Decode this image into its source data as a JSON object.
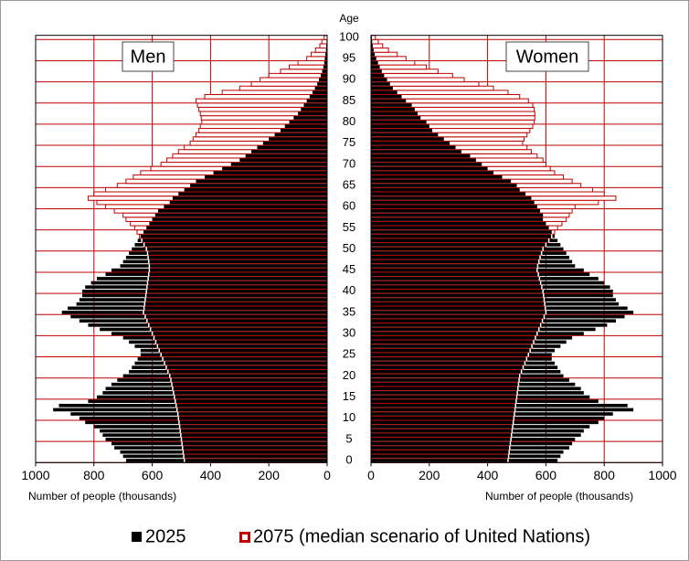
{
  "chart_data": {
    "type": "pyramid",
    "age_label": "Age",
    "left_label": "Men",
    "right_label": "Women",
    "xlabel": "Number  of people (thousands)",
    "xlim": [
      0,
      1000
    ],
    "xticks": [
      0,
      200,
      400,
      600,
      800,
      1000
    ],
    "ylim": [
      -0.5,
      100.5
    ],
    "yticks": [
      0,
      5,
      10,
      15,
      20,
      25,
      30,
      35,
      40,
      45,
      50,
      55,
      60,
      65,
      70,
      75,
      80,
      85,
      90,
      95,
      100
    ],
    "grid": true,
    "grid_color": "#c00000",
    "categories": [
      0,
      1,
      2,
      3,
      4,
      5,
      6,
      7,
      8,
      9,
      10,
      11,
      12,
      13,
      14,
      15,
      16,
      17,
      18,
      19,
      20,
      21,
      22,
      23,
      24,
      25,
      26,
      27,
      28,
      29,
      30,
      31,
      32,
      33,
      34,
      35,
      36,
      37,
      38,
      39,
      40,
      41,
      42,
      43,
      44,
      45,
      46,
      47,
      48,
      49,
      50,
      51,
      52,
      53,
      54,
      55,
      56,
      57,
      58,
      59,
      60,
      61,
      62,
      63,
      64,
      65,
      66,
      67,
      68,
      69,
      70,
      71,
      72,
      73,
      74,
      75,
      76,
      77,
      78,
      79,
      80,
      81,
      82,
      83,
      84,
      85,
      86,
      87,
      88,
      89,
      90,
      91,
      92,
      93,
      94,
      95,
      96,
      97,
      98,
      99,
      100
    ],
    "series": [
      {
        "name": "2025",
        "color": "#000000",
        "style": "filled",
        "men": [
          690,
          700,
          710,
          730,
          740,
          760,
          770,
          780,
          800,
          830,
          850,
          880,
          940,
          920,
          820,
          790,
          770,
          760,
          740,
          720,
          700,
          680,
          670,
          660,
          650,
          640,
          640,
          660,
          680,
          700,
          740,
          780,
          820,
          850,
          880,
          910,
          890,
          860,
          850,
          840,
          840,
          830,
          810,
          790,
          760,
          740,
          710,
          700,
          690,
          680,
          670,
          660,
          650,
          640,
          630,
          620,
          610,
          600,
          590,
          580,
          560,
          540,
          530,
          510,
          490,
          470,
          450,
          420,
          390,
          360,
          330,
          300,
          280,
          260,
          240,
          220,
          200,
          180,
          160,
          145,
          130,
          115,
          100,
          90,
          80,
          70,
          60,
          50,
          42,
          34,
          28,
          22,
          17,
          13,
          10,
          8,
          6,
          4,
          3,
          2,
          1
        ],
        "women": [
          640,
          650,
          660,
          680,
          690,
          700,
          720,
          730,
          750,
          780,
          800,
          830,
          900,
          880,
          780,
          750,
          730,
          720,
          700,
          680,
          660,
          650,
          640,
          630,
          620,
          620,
          630,
          650,
          670,
          690,
          730,
          770,
          810,
          840,
          870,
          900,
          880,
          850,
          840,
          830,
          830,
          820,
          800,
          780,
          750,
          730,
          700,
          690,
          680,
          670,
          660,
          650,
          640,
          630,
          620,
          610,
          600,
          590,
          590,
          580,
          570,
          560,
          550,
          530,
          510,
          500,
          480,
          450,
          420,
          400,
          380,
          360,
          340,
          310,
          290,
          270,
          250,
          230,
          210,
          200,
          190,
          170,
          160,
          150,
          140,
          120,
          105,
          90,
          75,
          65,
          55,
          45,
          37,
          30,
          24,
          18,
          13,
          9,
          6,
          4,
          3
        ]
      },
      {
        "name": "2075 (median scenario of United Nations)",
        "color": "#c00000",
        "style": "outline",
        "men": [
          490,
          492,
          494,
          496,
          498,
          500,
          502,
          504,
          506,
          508,
          510,
          512,
          515,
          518,
          521,
          524,
          527,
          530,
          533,
          536,
          540,
          546,
          552,
          558,
          564,
          570,
          576,
          582,
          588,
          594,
          600,
          606,
          612,
          618,
          624,
          630,
          628,
          626,
          624,
          622,
          620,
          618,
          616,
          614,
          612,
          610,
          610,
          612,
          614,
          616,
          620,
          628,
          636,
          644,
          652,
          660,
          675,
          690,
          700,
          730,
          760,
          790,
          820,
          800,
          760,
          720,
          690,
          665,
          640,
          605,
          570,
          550,
          530,
          510,
          490,
          470,
          460,
          450,
          440,
          435,
          430,
          432,
          435,
          440,
          445,
          450,
          420,
          360,
          300,
          260,
          230,
          200,
          160,
          130,
          100,
          70,
          55,
          40,
          25,
          18,
          10
        ],
        "women": [
          470,
          472,
          474,
          476,
          478,
          480,
          482,
          484,
          486,
          488,
          490,
          492,
          494,
          496,
          498,
          500,
          502,
          504,
          506,
          508,
          510,
          516,
          522,
          528,
          534,
          540,
          546,
          552,
          558,
          564,
          570,
          576,
          582,
          588,
          594,
          600,
          598,
          596,
          594,
          592,
          590,
          586,
          582,
          578,
          574,
          570,
          572,
          576,
          580,
          585,
          590,
          600,
          610,
          620,
          630,
          640,
          655,
          670,
          680,
          690,
          700,
          780,
          840,
          800,
          760,
          720,
          690,
          660,
          630,
          615,
          600,
          590,
          570,
          550,
          535,
          520,
          525,
          535,
          545,
          555,
          560,
          562,
          562,
          560,
          555,
          540,
          510,
          470,
          420,
          370,
          320,
          280,
          230,
          190,
          150,
          120,
          90,
          60,
          40,
          25,
          15
        ]
      }
    ]
  }
}
